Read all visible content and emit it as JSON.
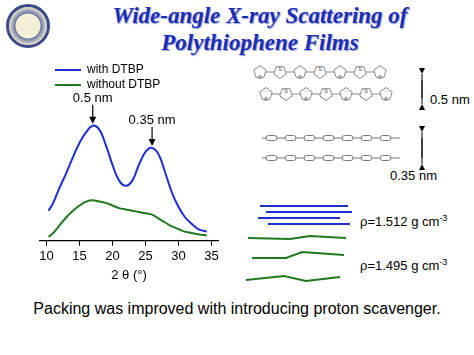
{
  "slide": {
    "title": [
      "Wide-angle X-ray Scattering of",
      "Polythiophene Films"
    ],
    "caption": "Packing was improved with introducing proton scavenger.",
    "diagram": {
      "ring_atom": "S",
      "spacings": [
        "0.5 nm",
        "0.35 nm"
      ],
      "densities": [
        {
          "text": "ρ=1.512 g cm",
          "superscript": "-3",
          "color": "#1c2fd0"
        },
        {
          "text": "ρ=1.495 g cm",
          "superscript": "-3",
          "color": "#1f7a1f"
        }
      ]
    }
  },
  "chart_data": {
    "type": "line",
    "x_label": "2 θ (°)",
    "x": [
      10.3,
      11,
      12,
      13,
      14,
      15,
      16,
      17,
      18,
      19,
      20,
      21,
      22,
      23,
      24,
      25,
      26,
      27,
      28,
      29,
      30,
      31,
      32,
      33,
      34.3
    ],
    "series": [
      {
        "name": "with DTBP",
        "color": "#1c2fd0",
        "values": [
          23,
          29,
          41,
          52,
          64,
          75,
          83,
          88,
          85,
          73,
          58,
          46,
          42,
          46,
          58,
          68,
          71,
          66,
          52,
          37,
          26,
          18,
          13,
          9,
          7
        ]
      },
      {
        "name": "without DTBP",
        "color": "#1f7a1f",
        "values": [
          3,
          6,
          12,
          18,
          23,
          27,
          30,
          31,
          30,
          29,
          27,
          25,
          24,
          23,
          22,
          21,
          20,
          17,
          14,
          11,
          9,
          7,
          6,
          5,
          4
        ]
      }
    ],
    "xlim": [
      9,
      36
    ],
    "xticks": [
      10,
      15,
      20,
      25,
      30,
      35
    ],
    "ylim": [
      0,
      100
    ],
    "tick_labels": "x",
    "grid": false,
    "legend": "upper left",
    "annotations": [
      {
        "text": "0.5 nm",
        "x": 17,
        "y": 88
      },
      {
        "text": "0.35 nm",
        "x": 26,
        "y": 71
      }
    ]
  }
}
